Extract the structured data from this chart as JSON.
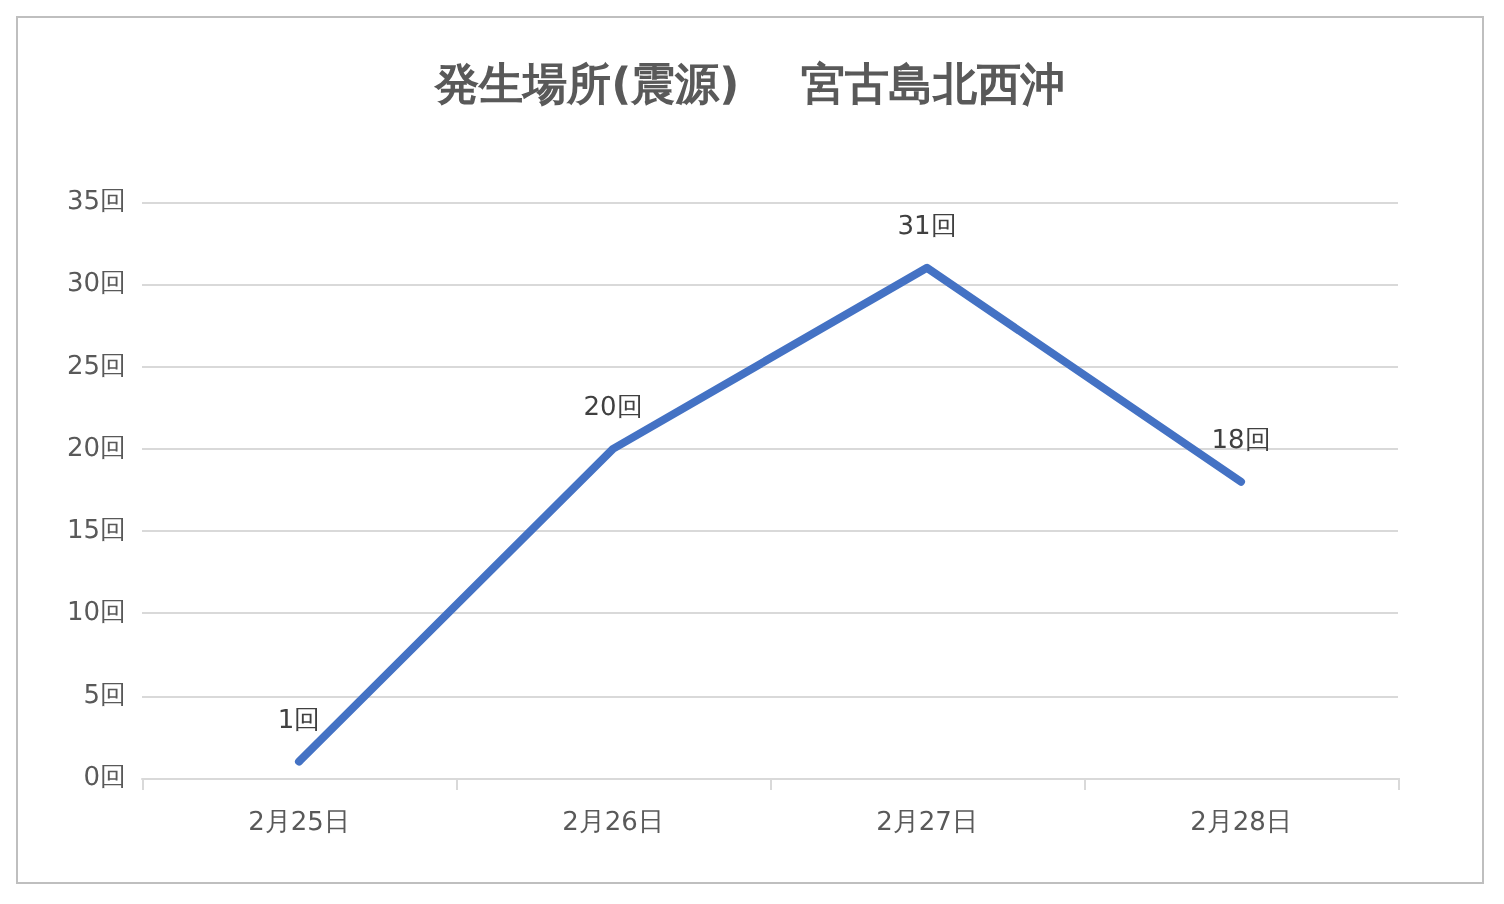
{
  "chart_data": {
    "type": "line",
    "title": "発生場所(震源)    宮古島北西沖",
    "categories": [
      "2月25日",
      "2月26日",
      "2月27日",
      "2月28日"
    ],
    "series": [
      {
        "color": "#4472c4",
        "values": [
          1,
          20,
          31,
          18
        ],
        "value_labels": [
          "1回",
          "20回",
          "31回",
          "18回"
        ]
      }
    ],
    "ylim": [
      0,
      35
    ],
    "yticks": [
      {
        "value": 0,
        "label": "0回"
      },
      {
        "value": 5,
        "label": "5回"
      },
      {
        "value": 10,
        "label": "10回"
      },
      {
        "value": 15,
        "label": "15回"
      },
      {
        "value": 20,
        "label": "20回"
      },
      {
        "value": 25,
        "label": "25回"
      },
      {
        "value": 30,
        "label": "30回"
      },
      {
        "value": 35,
        "label": "35回"
      }
    ],
    "grid": "y",
    "marker": "none",
    "line_style": "solid"
  }
}
